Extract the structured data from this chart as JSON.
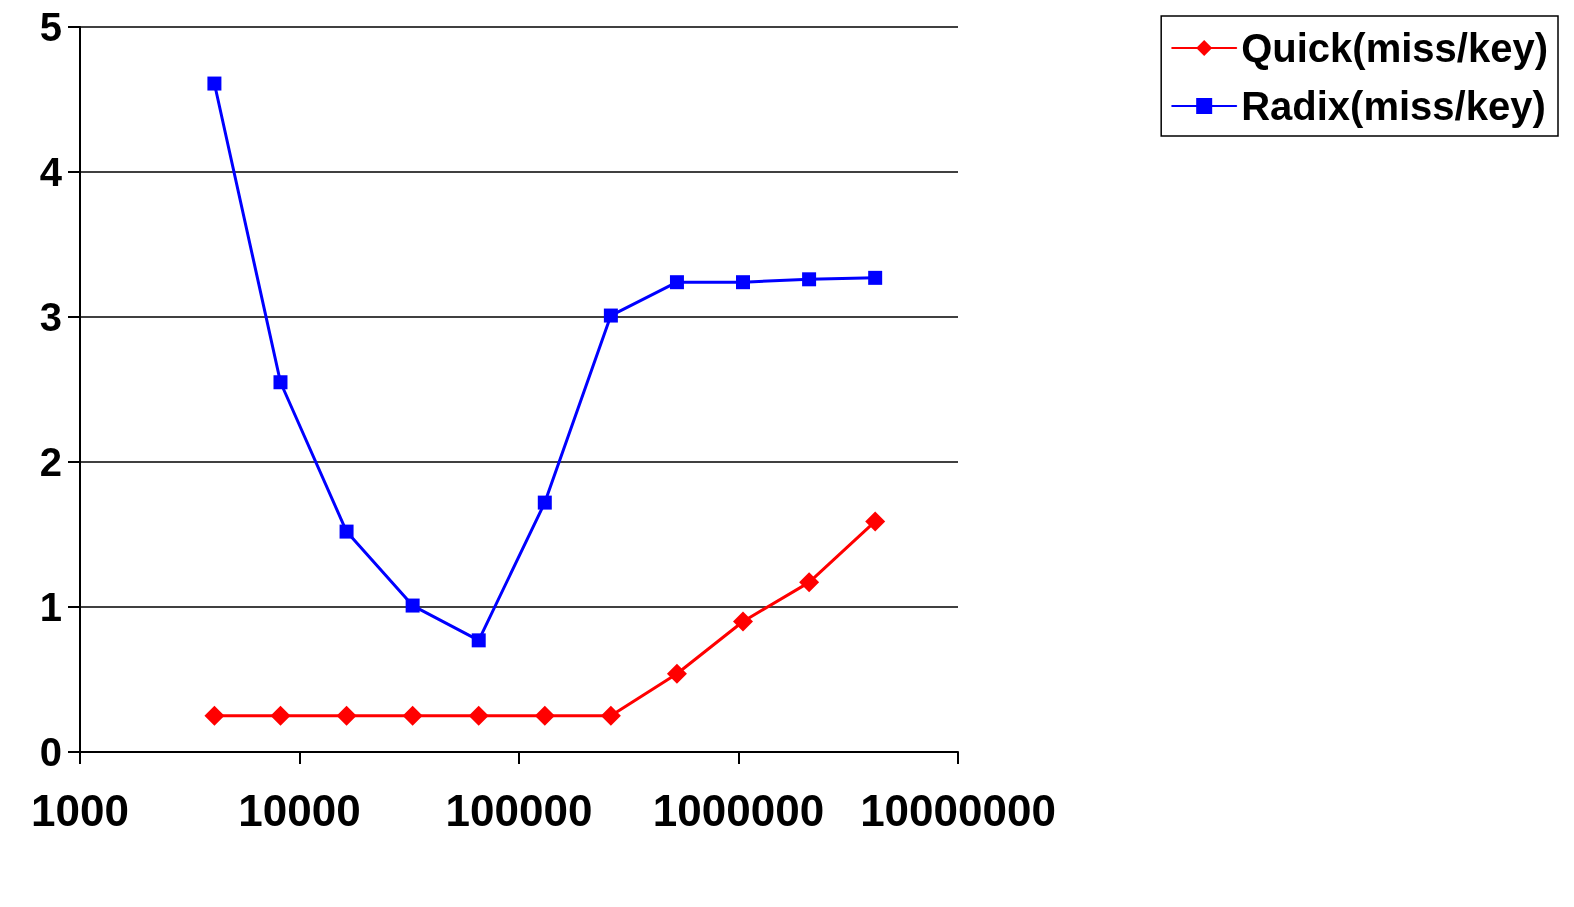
{
  "chart_data": {
    "type": "line",
    "x": [
      4096,
      8192,
      16384,
      32768,
      65536,
      131072,
      262144,
      524288,
      1048576,
      2097152,
      4194304
    ],
    "series": [
      {
        "name": "Quick(miss/key)",
        "color": "#ff0000",
        "marker": "diamond",
        "values": [
          0.25,
          0.25,
          0.25,
          0.25,
          0.25,
          0.25,
          0.25,
          0.54,
          0.9,
          1.17,
          1.59
        ]
      },
      {
        "name": "Radix(miss/key)",
        "color": "#0000ff",
        "marker": "square",
        "values": [
          4.61,
          2.55,
          1.52,
          1.01,
          0.77,
          1.72,
          3.01,
          3.24,
          3.24,
          3.26,
          3.27
        ]
      }
    ],
    "log": "x",
    "xlim": [
      1000,
      10000000
    ],
    "xticks": [
      1000,
      10000,
      100000,
      1000000,
      10000000
    ],
    "ylim": [
      0,
      5
    ],
    "yticks": [
      0,
      1,
      2,
      3,
      4,
      5
    ],
    "grid": "y",
    "legend": "top right",
    "line_style": "solid"
  }
}
